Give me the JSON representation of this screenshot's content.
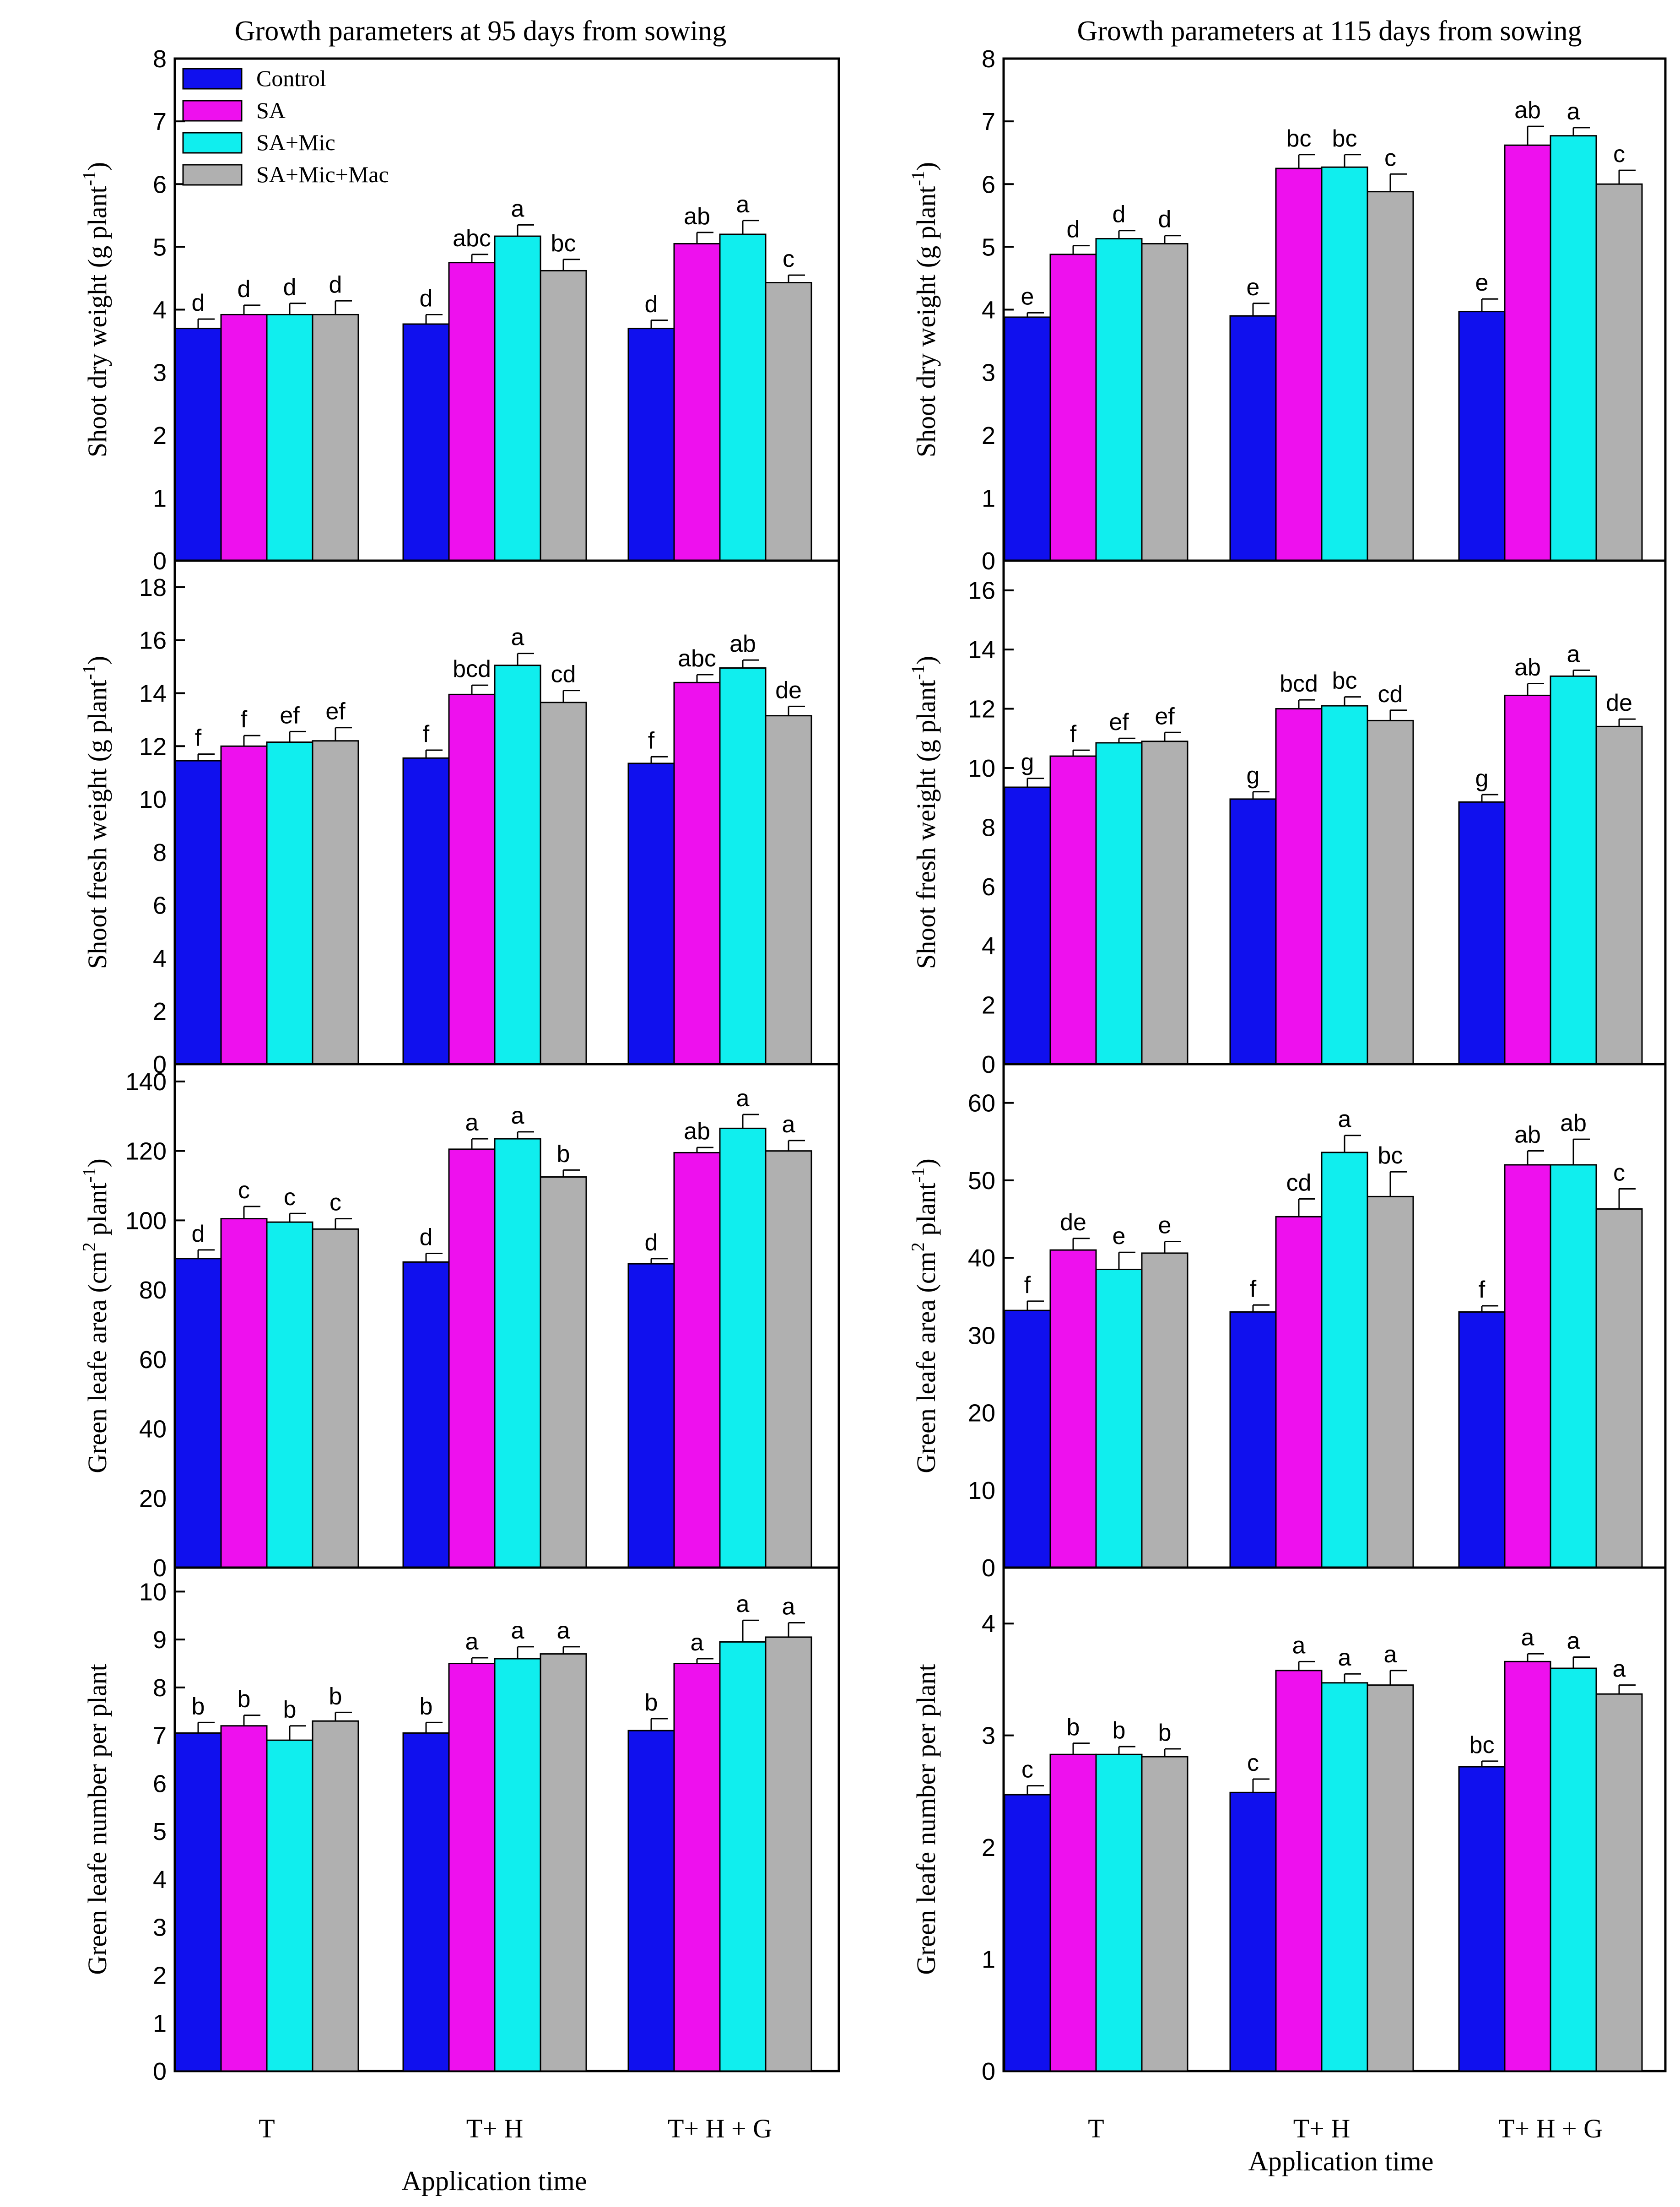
{
  "column_titles": [
    "Growth parameters at 95 days from sowing",
    "Growth parameters at 115 days from sowing"
  ],
  "x_axis_label": "Application time",
  "legend": [
    {
      "name": "Control",
      "color": "#1010ee"
    },
    {
      "name": "SA",
      "color": "#ee10ee"
    },
    {
      "name": "SA+Mic",
      "color": "#10eeee"
    },
    {
      "name": "SA+Mic+Mac",
      "color": "#b0b0b0"
    }
  ],
  "chart_data": [
    {
      "type": "bar",
      "column": 0,
      "row": 0,
      "ylabel": "Shoot dry weight (g plant",
      "ylabel_sup": "-1",
      "ylabel_tail": ")",
      "ylim": [
        0,
        8
      ],
      "yticks": [
        0,
        1,
        2,
        3,
        4,
        5,
        6,
        7,
        8
      ],
      "categories": [
        "T",
        "T+ H",
        "T+ H  + G"
      ],
      "series": [
        {
          "name": "Control",
          "values": [
            3.7,
            3.77,
            3.7
          ],
          "errors": [
            0.15,
            0.15,
            0.13
          ],
          "letters": [
            "d",
            "d",
            "d"
          ]
        },
        {
          "name": "SA",
          "values": [
            3.92,
            4.75,
            5.05
          ],
          "errors": [
            0.15,
            0.13,
            0.18
          ],
          "letters": [
            "d",
            "abc",
            "ab"
          ]
        },
        {
          "name": "SA+Mic",
          "values": [
            3.92,
            5.17,
            5.2
          ],
          "errors": [
            0.18,
            0.18,
            0.22
          ],
          "letters": [
            "d",
            "a",
            "a"
          ]
        },
        {
          "name": "SA+Mic+Mac",
          "values": [
            3.92,
            4.62,
            4.43
          ],
          "errors": [
            0.22,
            0.18,
            0.12
          ],
          "letters": [
            "d",
            "bc",
            "c"
          ]
        }
      ]
    },
    {
      "type": "bar",
      "column": 0,
      "row": 1,
      "ylabel": "Shoot fresh weight (g plant",
      "ylabel_sup": "-1",
      "ylabel_tail": ")",
      "ylim": [
        0,
        19
      ],
      "yticks": [
        0,
        2,
        4,
        6,
        8,
        10,
        12,
        14,
        16,
        18
      ],
      "categories": [
        "T",
        "T+ H",
        "T+ H  + G"
      ],
      "series": [
        {
          "name": "Control",
          "values": [
            11.45,
            11.55,
            11.35
          ],
          "errors": [
            0.25,
            0.3,
            0.25
          ],
          "letters": [
            "f",
            "f",
            "f"
          ]
        },
        {
          "name": "SA",
          "values": [
            12.0,
            13.95,
            14.4
          ],
          "errors": [
            0.4,
            0.35,
            0.3
          ],
          "letters": [
            "f",
            "bcd",
            "abc"
          ]
        },
        {
          "name": "SA+Mic",
          "values": [
            12.15,
            15.05,
            14.95
          ],
          "errors": [
            0.4,
            0.45,
            0.3
          ],
          "letters": [
            "ef",
            "a",
            "ab"
          ]
        },
        {
          "name": "SA+Mic+Mac",
          "values": [
            12.2,
            13.65,
            13.15
          ],
          "errors": [
            0.5,
            0.45,
            0.35
          ],
          "letters": [
            "ef",
            "cd",
            "de"
          ]
        }
      ]
    },
    {
      "type": "bar",
      "column": 0,
      "row": 2,
      "ylabel": "Green leafe area (cm",
      "ylabel_sup": "2",
      "ylabel_tail": " plant",
      "ylabel_sup2": "-1",
      "ylabel_tail2": ")",
      "ylim": [
        0,
        145
      ],
      "yticks": [
        0,
        20,
        40,
        60,
        80,
        100,
        120,
        140
      ],
      "categories": [
        "T",
        "T+ H",
        "T+ H  + G"
      ],
      "series": [
        {
          "name": "Control",
          "values": [
            89,
            88,
            87.5
          ],
          "errors": [
            2.5,
            2.5,
            1.5
          ],
          "letters": [
            "d",
            "d",
            "d"
          ]
        },
        {
          "name": "SA",
          "values": [
            100.5,
            120.5,
            119.5
          ],
          "errors": [
            3.5,
            3.0,
            1.5
          ],
          "letters": [
            "c",
            "a",
            "ab"
          ]
        },
        {
          "name": "SA+Mic",
          "values": [
            99.5,
            123.5,
            126.5
          ],
          "errors": [
            2.5,
            2.0,
            4.0
          ],
          "letters": [
            "c",
            "a",
            "a"
          ]
        },
        {
          "name": "SA+Mic+Mac",
          "values": [
            97.5,
            112.5,
            120
          ],
          "errors": [
            3.0,
            2.0,
            3.0
          ],
          "letters": [
            "c",
            "b",
            "a"
          ]
        }
      ]
    },
    {
      "type": "bar",
      "column": 0,
      "row": 3,
      "ylabel": "Green leafe number per plant",
      "ylim": [
        0,
        10.5
      ],
      "yticks": [
        0,
        1,
        2,
        3,
        4,
        5,
        6,
        7,
        8,
        9,
        10
      ],
      "categories": [
        "T",
        "T+ H",
        "T+ H  + G"
      ],
      "series": [
        {
          "name": "Control",
          "values": [
            7.05,
            7.05,
            7.1
          ],
          "errors": [
            0.22,
            0.22,
            0.25
          ],
          "letters": [
            "b",
            "b",
            "b"
          ]
        },
        {
          "name": "SA",
          "values": [
            7.2,
            8.5,
            8.5
          ],
          "errors": [
            0.22,
            0.12,
            0.1
          ],
          "letters": [
            "b",
            "a",
            "a"
          ]
        },
        {
          "name": "SA+Mic",
          "values": [
            6.9,
            8.6,
            8.95
          ],
          "errors": [
            0.3,
            0.25,
            0.45
          ],
          "letters": [
            "b",
            "a",
            "a"
          ]
        },
        {
          "name": "SA+Mic+Mac",
          "values": [
            7.3,
            8.7,
            9.05
          ],
          "errors": [
            0.18,
            0.15,
            0.3
          ],
          "letters": [
            "b",
            "a",
            "a"
          ]
        }
      ]
    },
    {
      "type": "bar",
      "column": 1,
      "row": 0,
      "ylabel": "Shoot dry weight (g plant",
      "ylabel_sup": "-1",
      "ylabel_tail": ")",
      "ylim": [
        0,
        8
      ],
      "yticks": [
        0,
        1,
        2,
        3,
        4,
        5,
        6,
        7,
        8
      ],
      "categories": [
        "T",
        "T+ H",
        "T+ H + G"
      ],
      "series": [
        {
          "name": "Control",
          "values": [
            3.88,
            3.9,
            3.97
          ],
          "errors": [
            0.07,
            0.2,
            0.2
          ],
          "letters": [
            "e",
            "e",
            "e"
          ]
        },
        {
          "name": "SA",
          "values": [
            4.88,
            6.25,
            6.62
          ],
          "errors": [
            0.14,
            0.22,
            0.3
          ],
          "letters": [
            "d",
            "bc",
            "ab"
          ]
        },
        {
          "name": "SA+Mic",
          "values": [
            5.13,
            6.27,
            6.77
          ],
          "errors": [
            0.13,
            0.2,
            0.13
          ],
          "letters": [
            "d",
            "bc",
            "a"
          ]
        },
        {
          "name": "SA+Mic+Mac",
          "values": [
            5.05,
            5.88,
            6.0
          ],
          "errors": [
            0.13,
            0.28,
            0.22
          ],
          "letters": [
            "d",
            "c",
            "c"
          ]
        }
      ]
    },
    {
      "type": "bar",
      "column": 1,
      "row": 1,
      "ylabel": "Shoot fresh weight (g plant",
      "ylabel_sup": "-1",
      "ylabel_tail": ")",
      "ylim": [
        0,
        17
      ],
      "yticks": [
        0,
        2,
        4,
        6,
        8,
        10,
        12,
        14,
        16
      ],
      "categories": [
        "T",
        "T+ H",
        "T+ H + G"
      ],
      "series": [
        {
          "name": "Control",
          "values": [
            9.35,
            8.95,
            8.85
          ],
          "errors": [
            0.3,
            0.25,
            0.25
          ],
          "letters": [
            "g",
            "g",
            "g"
          ]
        },
        {
          "name": "SA",
          "values": [
            10.4,
            12.0,
            12.45
          ],
          "errors": [
            0.2,
            0.3,
            0.4
          ],
          "letters": [
            "f",
            "bcd",
            "ab"
          ]
        },
        {
          "name": "SA+Mic",
          "values": [
            10.85,
            12.1,
            13.1
          ],
          "errors": [
            0.15,
            0.3,
            0.2
          ],
          "letters": [
            "ef",
            "bc",
            "a"
          ]
        },
        {
          "name": "SA+Mic+Mac",
          "values": [
            10.9,
            11.6,
            11.4
          ],
          "errors": [
            0.3,
            0.35,
            0.25
          ],
          "letters": [
            "ef",
            "cd",
            "de"
          ]
        }
      ]
    },
    {
      "type": "bar",
      "column": 1,
      "row": 2,
      "ylabel": "Green leafe area (cm",
      "ylabel_sup": "2",
      "ylabel_tail": " plant",
      "ylabel_sup2": "-1",
      "ylabel_tail2": ")",
      "ylim": [
        0,
        65
      ],
      "yticks": [
        0,
        10,
        20,
        30,
        40,
        50,
        60
      ],
      "categories": [
        "T",
        "T+ H",
        "T+ H + G"
      ],
      "series": [
        {
          "name": "Control",
          "values": [
            33.2,
            33.0,
            33.0
          ],
          "errors": [
            1.2,
            0.9,
            0.8
          ],
          "letters": [
            "f",
            "f",
            "f"
          ]
        },
        {
          "name": "SA",
          "values": [
            41.0,
            45.3,
            52.0
          ],
          "errors": [
            1.5,
            2.3,
            1.8
          ],
          "letters": [
            "de",
            "cd",
            "ab"
          ]
        },
        {
          "name": "SA+Mic",
          "values": [
            38.5,
            53.6,
            52.0
          ],
          "errors": [
            2.2,
            2.2,
            3.3
          ],
          "letters": [
            "e",
            "a",
            "ab"
          ]
        },
        {
          "name": "SA+Mic+Mac",
          "values": [
            40.6,
            47.9,
            46.3
          ],
          "errors": [
            1.5,
            3.2,
            2.6
          ],
          "letters": [
            "e",
            "bc",
            "c"
          ]
        }
      ]
    },
    {
      "type": "bar",
      "column": 1,
      "row": 3,
      "ylabel": "Green leafe number per plant",
      "ylim": [
        0,
        4.5
      ],
      "yticks": [
        0,
        1,
        2,
        3,
        4
      ],
      "categories": [
        "T",
        "T+ H",
        "T+ H + G"
      ],
      "series": [
        {
          "name": "Control",
          "values": [
            2.47,
            2.49,
            2.72
          ],
          "errors": [
            0.08,
            0.12,
            0.05
          ],
          "letters": [
            "c",
            "c",
            "bc"
          ]
        },
        {
          "name": "SA",
          "values": [
            2.83,
            3.58,
            3.66
          ],
          "errors": [
            0.1,
            0.08,
            0.07
          ],
          "letters": [
            "b",
            "a",
            "a"
          ]
        },
        {
          "name": "SA+Mic",
          "values": [
            2.83,
            3.47,
            3.6
          ],
          "errors": [
            0.07,
            0.08,
            0.1
          ],
          "letters": [
            "b",
            "a",
            "a"
          ]
        },
        {
          "name": "SA+Mic+Mac",
          "values": [
            2.81,
            3.45,
            3.37
          ],
          "errors": [
            0.07,
            0.13,
            0.08
          ],
          "letters": [
            "b",
            "a",
            "a"
          ]
        }
      ]
    }
  ]
}
